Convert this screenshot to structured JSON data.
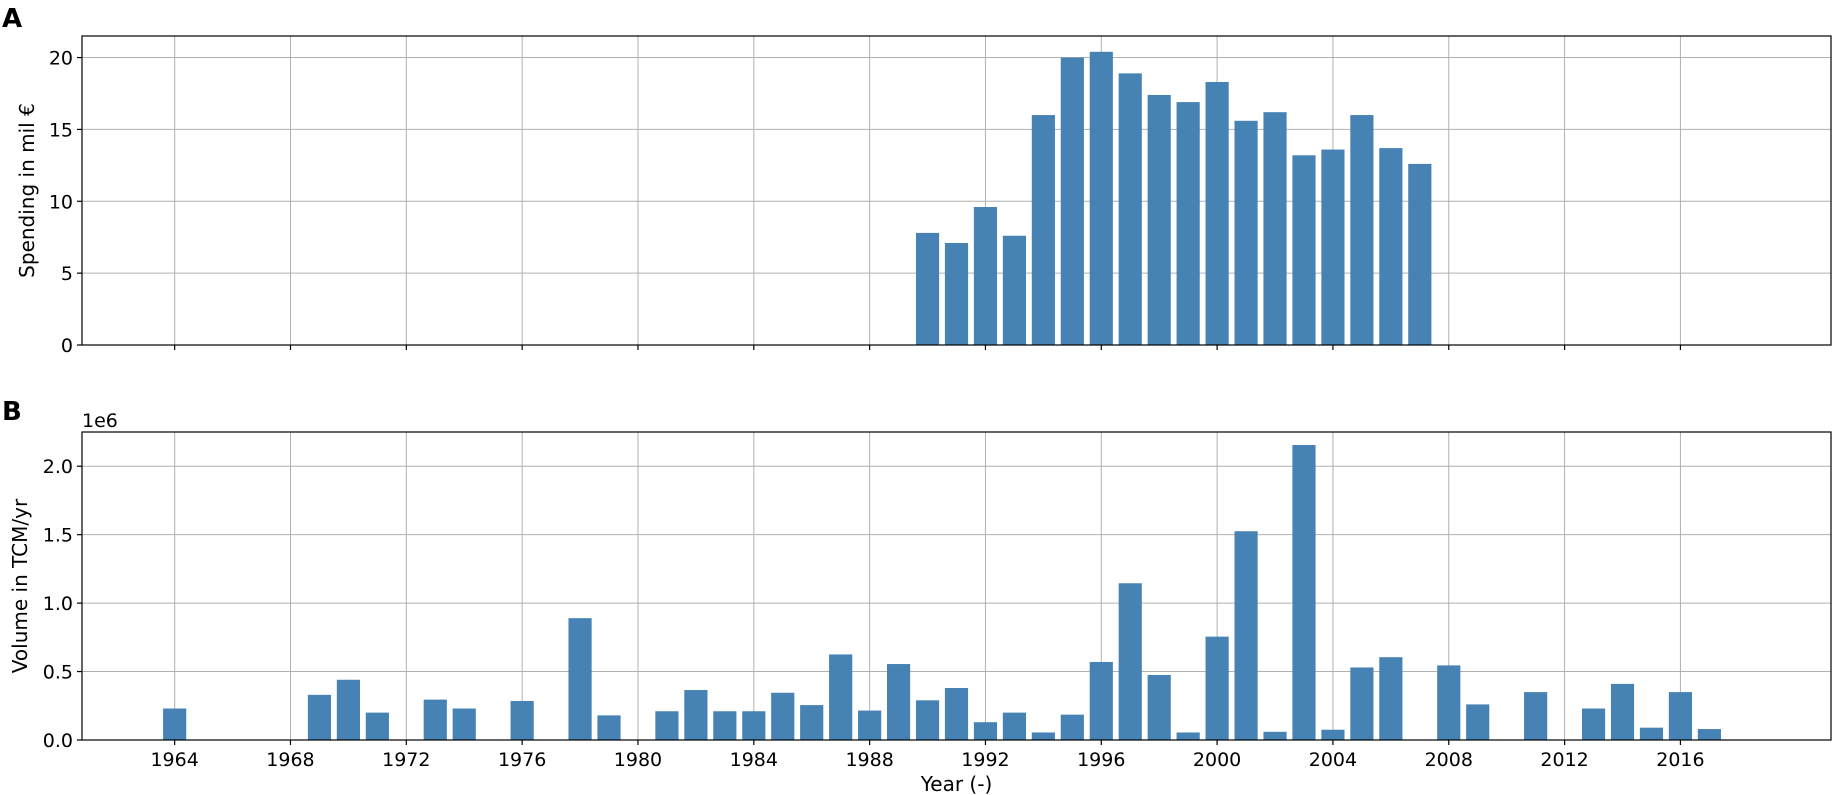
{
  "colors": {
    "bar": "#4682b4",
    "grid": "#b0b0b0",
    "axis": "#000000"
  },
  "chart_data": [
    {
      "panel_label": "A",
      "type": "bar",
      "xlabel": "",
      "ylabel": "Spending in mil €",
      "ylim": [
        0,
        21.5
      ],
      "yticks": [
        0,
        5,
        10,
        15,
        20
      ],
      "offset_text": "",
      "grid": true,
      "x": [
        1990,
        1991,
        1992,
        1993,
        1994,
        1995,
        1996,
        1997,
        1998,
        1999,
        2000,
        2001,
        2002,
        2003,
        2004,
        2005,
        2006,
        2007
      ],
      "values": [
        7.8,
        7.1,
        9.6,
        7.6,
        16.0,
        20.0,
        20.4,
        18.9,
        17.4,
        16.9,
        18.3,
        15.6,
        16.2,
        13.2,
        13.6,
        16.0,
        13.7,
        12.6
      ]
    },
    {
      "panel_label": "B",
      "type": "bar",
      "xlabel": "Year (-)",
      "ylabel": "Volume in TCM/yr",
      "ylim": [
        0,
        2250000
      ],
      "yticks": [
        0,
        500000,
        1000000,
        1500000,
        2000000
      ],
      "ytick_labels": [
        "0.0",
        "0.5",
        "1.0",
        "1.5",
        "2.0"
      ],
      "offset_text": "1e6",
      "grid": true,
      "x": [
        1964,
        1969,
        1970,
        1971,
        1973,
        1974,
        1976,
        1978,
        1979,
        1981,
        1982,
        1983,
        1984,
        1985,
        1986,
        1987,
        1988,
        1989,
        1990,
        1991,
        1992,
        1993,
        1994,
        1995,
        1996,
        1997,
        1998,
        1999,
        2000,
        2001,
        2002,
        2003,
        2004,
        2005,
        2006,
        2008,
        2009,
        2011,
        2013,
        2014,
        2015,
        2016,
        2017
      ],
      "values": [
        230000,
        330000,
        440000,
        200000,
        295000,
        230000,
        285000,
        890000,
        180000,
        210000,
        365000,
        210000,
        210000,
        345000,
        255000,
        625000,
        215000,
        555000,
        290000,
        380000,
        130000,
        200000,
        55000,
        185000,
        570000,
        1145000,
        475000,
        55000,
        755000,
        1525000,
        60000,
        2155000,
        75000,
        530000,
        605000,
        545000,
        260000,
        350000,
        230000,
        410000,
        90000,
        350000,
        80000
      ]
    }
  ],
  "x_axis": {
    "xlim": [
      1960.8,
      2021.2
    ],
    "xticks": [
      1964,
      1968,
      1972,
      1976,
      1980,
      1984,
      1988,
      1992,
      1996,
      2000,
      2004,
      2008,
      2012,
      2016
    ]
  }
}
